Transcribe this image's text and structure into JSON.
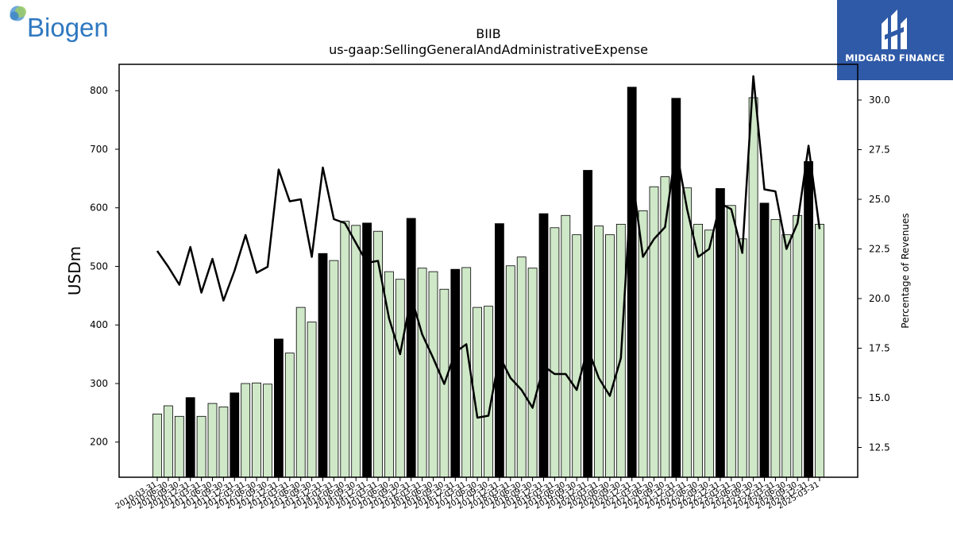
{
  "logos": {
    "left_text": "Biogen",
    "right_text": "MIDGARD FINANCE"
  },
  "chart_data": {
    "type": "bar",
    "title": "BIIB",
    "subtitle": "us-gaap:SellingGeneralAndAdministrativeExpense",
    "ylabel": "USDm",
    "y2label": "Percentage of Revenues",
    "ylim": [
      140,
      845
    ],
    "y2lim": [
      11.0,
      31.8
    ],
    "yticks": [
      200,
      300,
      400,
      500,
      600,
      700,
      800
    ],
    "y2ticks": [
      12.5,
      15.0,
      17.5,
      20.0,
      22.5,
      25.0,
      27.5,
      30.0
    ],
    "grid": false,
    "x": [
      "2010-03-31",
      "2010-06-30",
      "2010-09-30",
      "2010-12-31",
      "2011-03-31",
      "2011-06-30",
      "2011-09-30",
      "2011-12-31",
      "2012-03-31",
      "2012-06-30",
      "2012-09-30",
      "2012-12-31",
      "2013-03-31",
      "2013-06-30",
      "2013-09-30",
      "2013-12-31",
      "2014-03-31",
      "2014-06-30",
      "2014-09-30",
      "2014-12-31",
      "2015-03-31",
      "2015-06-30",
      "2015-09-30",
      "2015-12-31",
      "2016-03-31",
      "2016-06-30",
      "2016-09-30",
      "2016-12-31",
      "2017-03-31",
      "2017-06-30",
      "2017-09-30",
      "2017-12-31",
      "2018-03-31",
      "2018-06-30",
      "2018-09-30",
      "2018-12-31",
      "2019-03-31",
      "2019-06-30",
      "2019-09-30",
      "2019-12-31",
      "2020-03-31",
      "2020-06-30",
      "2020-09-30",
      "2020-12-31",
      "2021-03-31",
      "2021-06-30",
      "2021-09-30",
      "2021-12-31",
      "2022-03-31",
      "2022-06-30",
      "2022-09-30",
      "2022-12-31",
      "2023-03-31",
      "2023-06-30",
      "2023-09-30",
      "2023-12-31",
      "2024-03-31",
      "2024-06-30",
      "2024-09-30",
      "2024-12-31",
      "2025-03-31"
    ],
    "series": [
      {
        "name": "",
        "kind": "bar",
        "values": [
          248,
          262,
          244,
          276,
          244,
          266,
          260,
          284,
          300,
          301,
          299,
          376,
          352,
          430,
          405,
          522,
          510,
          577,
          570,
          574,
          560,
          491,
          478,
          582,
          497,
          491,
          461,
          495,
          498,
          430,
          432,
          573,
          501,
          516,
          497,
          590,
          566,
          587,
          554,
          664,
          569,
          554,
          572,
          806,
          595,
          636,
          653,
          787,
          634,
          572,
          562,
          633,
          604,
          547,
          788,
          608,
          580,
          554,
          587,
          679,
          572
        ],
        "colors": {
          "year_end": "#000000",
          "other": "#cfe8c8"
        }
      },
      {
        "name": "",
        "kind": "line",
        "axis": "right",
        "values": [
          22.4,
          21.6,
          20.7,
          22.6,
          20.3,
          22.0,
          19.9,
          21.4,
          23.2,
          21.3,
          21.6,
          26.5,
          24.9,
          25.0,
          22.1,
          26.6,
          24.0,
          23.8,
          22.8,
          21.8,
          21.9,
          19.0,
          17.2,
          20.1,
          18.2,
          17.0,
          15.7,
          17.3,
          17.7,
          14.0,
          14.1,
          17.1,
          16.0,
          15.4,
          14.5,
          16.6,
          16.2,
          16.2,
          15.4,
          17.5,
          16.0,
          15.1,
          17.0,
          26.3,
          22.1,
          23.0,
          23.6,
          27.6,
          24.5,
          22.1,
          22.5,
          24.8,
          24.5,
          22.3,
          31.2,
          25.5,
          25.4,
          22.5,
          23.8,
          27.7,
          23.5
        ]
      }
    ]
  }
}
